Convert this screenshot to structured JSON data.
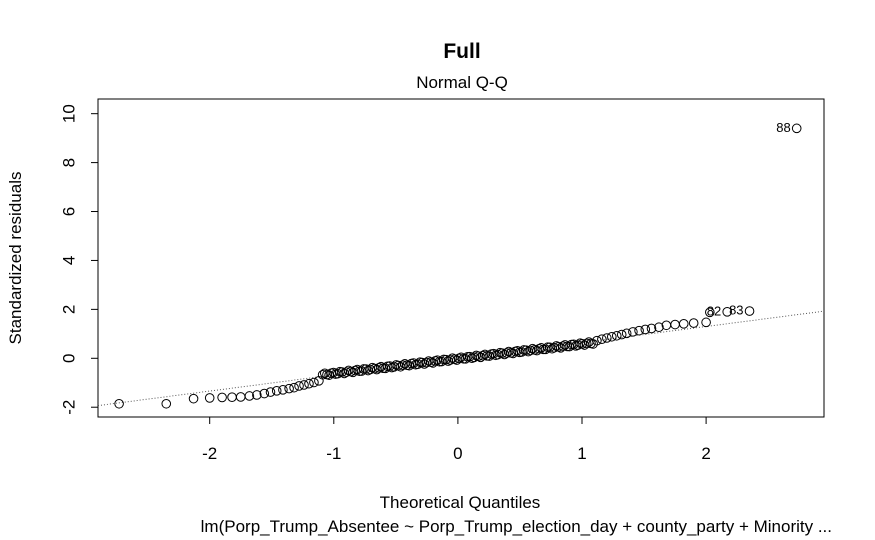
{
  "chart_data": {
    "type": "scatter",
    "title": "Full",
    "subtitle": "Normal Q-Q",
    "xlabel": "Theoretical Quantiles",
    "ylabel": "Standardized residuals",
    "caption": "lm(Porp_Trump_Absentee ~ Porp_Trump_election_day + county_party + Minority  ...",
    "xlim": [
      -2.9,
      2.95
    ],
    "ylim": [
      -2.4,
      10.6
    ],
    "x_ticks": [
      -2,
      -1,
      0,
      1,
      2
    ],
    "y_ticks": [
      -2,
      0,
      2,
      4,
      6,
      8,
      10
    ],
    "reference_line": {
      "slope": 0.66,
      "intercept": -0.02,
      "style": "dotted"
    },
    "point_labels": [
      {
        "index": 88,
        "text": "88",
        "x": 2.73,
        "y": 9.4
      },
      {
        "index": 83,
        "text": "83",
        "x": 2.35,
        "y": 1.93
      },
      {
        "index": 82,
        "text": "82",
        "x": 2.17,
        "y": 1.9
      }
    ],
    "main_points": [
      [
        -2.73,
        -1.86
      ],
      [
        -2.35,
        -1.86
      ],
      [
        -2.13,
        -1.65
      ],
      [
        -2.0,
        -1.62
      ],
      [
        -1.9,
        -1.6
      ],
      [
        -1.82,
        -1.59
      ],
      [
        -1.75,
        -1.58
      ],
      [
        -1.68,
        -1.54
      ],
      [
        -1.62,
        -1.5
      ],
      [
        -1.56,
        -1.44
      ],
      [
        -1.51,
        -1.38
      ],
      [
        -1.46,
        -1.33
      ],
      [
        -1.41,
        -1.29
      ],
      [
        -1.36,
        -1.24
      ],
      [
        -1.32,
        -1.2
      ],
      [
        -1.28,
        -1.13
      ],
      [
        -1.24,
        -1.09
      ],
      [
        -1.2,
        -1.04
      ],
      [
        -1.16,
        -0.99
      ],
      [
        -1.12,
        -0.92
      ]
    ],
    "tail_points": [
      [
        1.12,
        0.72
      ],
      [
        1.16,
        0.78
      ],
      [
        1.2,
        0.83
      ],
      [
        1.24,
        0.88
      ],
      [
        1.28,
        0.92
      ],
      [
        1.32,
        0.97
      ],
      [
        1.36,
        1.02
      ],
      [
        1.41,
        1.08
      ],
      [
        1.46,
        1.13
      ],
      [
        1.51,
        1.18
      ],
      [
        1.56,
        1.22
      ],
      [
        1.62,
        1.27
      ],
      [
        1.68,
        1.35
      ],
      [
        1.75,
        1.38
      ],
      [
        1.82,
        1.41
      ],
      [
        1.9,
        1.44
      ],
      [
        2.0,
        1.47
      ],
      [
        2.03,
        1.88
      ],
      [
        2.17,
        1.9
      ],
      [
        2.35,
        1.93
      ],
      [
        2.73,
        9.4
      ]
    ],
    "middle_range": {
      "x_from": -1.09,
      "x_to": 1.09,
      "count": 126,
      "slope": 0.6,
      "intercept": -0.02,
      "noise": 0.05
    }
  }
}
